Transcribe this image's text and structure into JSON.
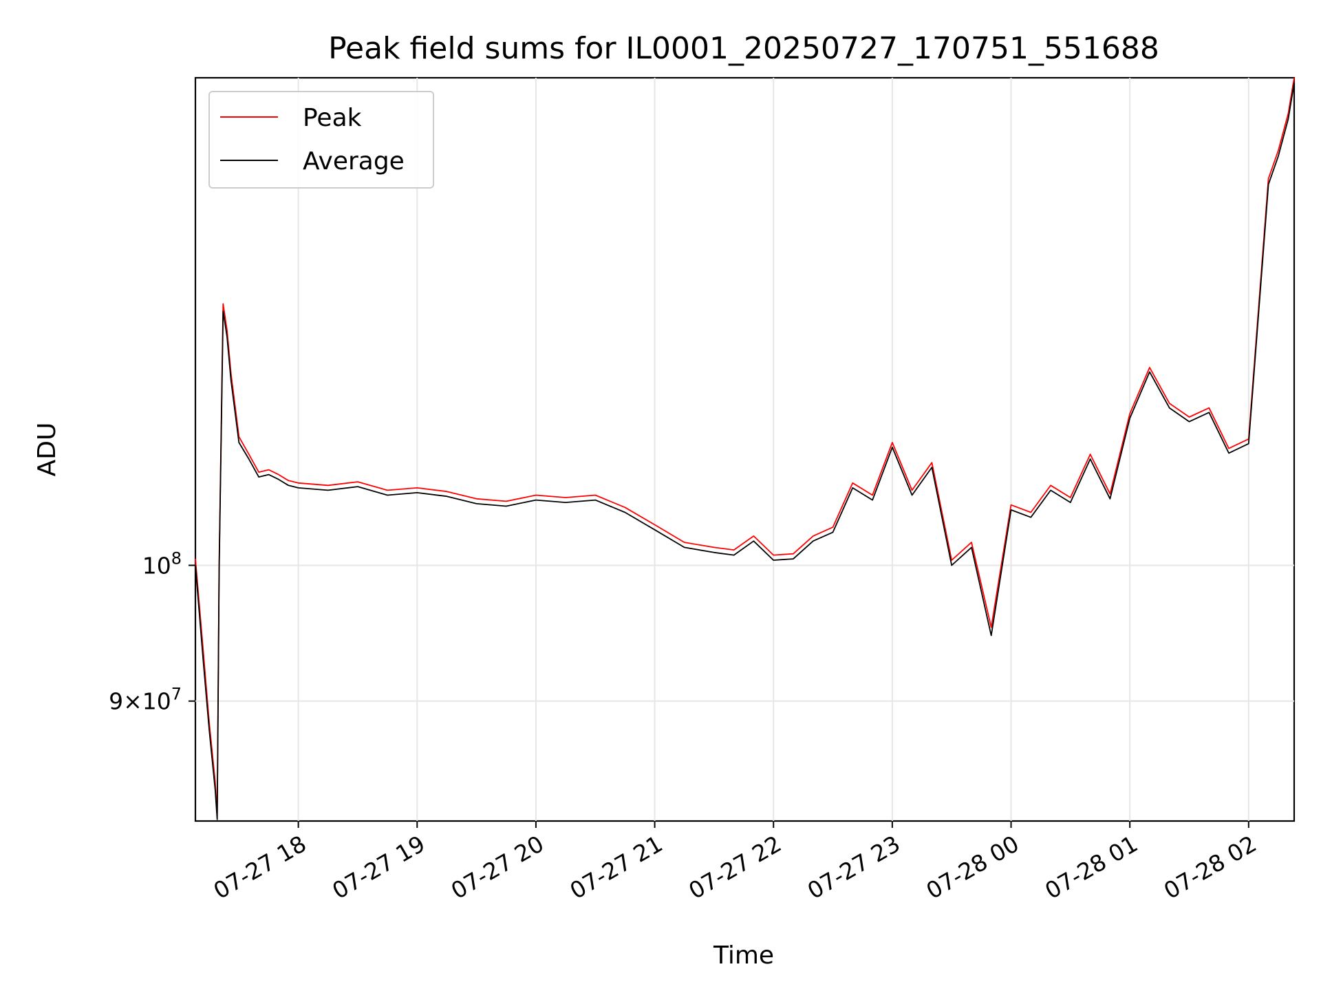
{
  "chart_data": {
    "type": "line",
    "title": "Peak field sums for IL0001_20250727_170751_551688",
    "xlabel": "Time",
    "ylabel": "ADU",
    "y_scale": "log",
    "xlim": [
      "2025-07-27 17:08",
      "2025-07-28 02:23"
    ],
    "ylim": [
      82000000,
      146000000
    ],
    "grid": true,
    "legend_position": "top-left",
    "x_tick_labels": [
      "07-27 18",
      "07-27 19",
      "07-27 20",
      "07-27 21",
      "07-27 22",
      "07-27 23",
      "07-28 00",
      "07-28 01",
      "07-28 02"
    ],
    "y_tick_labels": [
      "10^8",
      "9×10^7"
    ],
    "y_tick_values": [
      100000000,
      90000000
    ],
    "series": [
      {
        "name": "Peak",
        "color": "#ff0000",
        "x": [
          "2025-07-27 17:08",
          "2025-07-27 17:12",
          "2025-07-27 17:15",
          "2025-07-27 17:18",
          "2025-07-27 17:19",
          "2025-07-27 17:20",
          "2025-07-27 17:22",
          "2025-07-27 17:24",
          "2025-07-27 17:26",
          "2025-07-27 17:30",
          "2025-07-27 17:35",
          "2025-07-27 17:40",
          "2025-07-27 17:45",
          "2025-07-27 17:50",
          "2025-07-27 17:55",
          "2025-07-27 18:00",
          "2025-07-27 18:15",
          "2025-07-27 18:30",
          "2025-07-27 18:45",
          "2025-07-27 19:00",
          "2025-07-27 19:15",
          "2025-07-27 19:30",
          "2025-07-27 19:45",
          "2025-07-27 20:00",
          "2025-07-27 20:15",
          "2025-07-27 20:30",
          "2025-07-27 20:45",
          "2025-07-27 21:00",
          "2025-07-27 21:15",
          "2025-07-27 21:30",
          "2025-07-27 21:40",
          "2025-07-27 21:50",
          "2025-07-27 22:00",
          "2025-07-27 22:10",
          "2025-07-27 22:20",
          "2025-07-27 22:30",
          "2025-07-27 22:40",
          "2025-07-27 22:50",
          "2025-07-27 23:00",
          "2025-07-27 23:10",
          "2025-07-27 23:20",
          "2025-07-27 23:30",
          "2025-07-27 23:40",
          "2025-07-27 23:50",
          "2025-07-28 00:00",
          "2025-07-28 00:10",
          "2025-07-28 00:20",
          "2025-07-28 00:30",
          "2025-07-28 00:40",
          "2025-07-28 00:50",
          "2025-07-28 01:00",
          "2025-07-28 01:10",
          "2025-07-28 01:20",
          "2025-07-28 01:30",
          "2025-07-28 01:40",
          "2025-07-28 01:50",
          "2025-07-28 02:00",
          "2025-07-28 02:10",
          "2025-07-28 02:15",
          "2025-07-28 02:20",
          "2025-07-28 02:23"
        ],
        "y": [
          100500000,
          93500000,
          88500000,
          84500000,
          82500000,
          100000000,
          122500000,
          120000000,
          116000000,
          110500000,
          109000000,
          107500000,
          107700000,
          107300000,
          106800000,
          106600000,
          106400000,
          106700000,
          106000000,
          106200000,
          105900000,
          105300000,
          105100000,
          105600000,
          105400000,
          105600000,
          104600000,
          103200000,
          101800000,
          101400000,
          101200000,
          102300000,
          100800000,
          100900000,
          102300000,
          103000000,
          106600000,
          105600000,
          110000000,
          106000000,
          108300000,
          100400000,
          101800000,
          95300000,
          104800000,
          104200000,
          106400000,
          105400000,
          109000000,
          105700000,
          112500000,
          116600000,
          113400000,
          112200000,
          113000000,
          109500000,
          110300000,
          135000000,
          138000000,
          142000000,
          146000000
        ]
      },
      {
        "name": "Average",
        "color": "#000000",
        "x": [
          "2025-07-27 17:08",
          "2025-07-27 17:12",
          "2025-07-27 17:15",
          "2025-07-27 17:18",
          "2025-07-27 17:19",
          "2025-07-27 17:20",
          "2025-07-27 17:22",
          "2025-07-27 17:24",
          "2025-07-27 17:26",
          "2025-07-27 17:30",
          "2025-07-27 17:35",
          "2025-07-27 17:40",
          "2025-07-27 17:45",
          "2025-07-27 17:50",
          "2025-07-27 17:55",
          "2025-07-27 18:00",
          "2025-07-27 18:15",
          "2025-07-27 18:30",
          "2025-07-27 18:45",
          "2025-07-27 19:00",
          "2025-07-27 19:15",
          "2025-07-27 19:30",
          "2025-07-27 19:45",
          "2025-07-27 20:00",
          "2025-07-27 20:15",
          "2025-07-27 20:30",
          "2025-07-27 20:45",
          "2025-07-27 21:00",
          "2025-07-27 21:15",
          "2025-07-27 21:30",
          "2025-07-27 21:40",
          "2025-07-27 21:50",
          "2025-07-27 22:00",
          "2025-07-27 22:10",
          "2025-07-27 22:20",
          "2025-07-27 22:30",
          "2025-07-27 22:40",
          "2025-07-27 22:50",
          "2025-07-27 23:00",
          "2025-07-27 23:10",
          "2025-07-27 23:20",
          "2025-07-27 23:30",
          "2025-07-27 23:40",
          "2025-07-27 23:50",
          "2025-07-28 00:00",
          "2025-07-28 00:10",
          "2025-07-28 00:20",
          "2025-07-28 00:30",
          "2025-07-28 00:40",
          "2025-07-28 00:50",
          "2025-07-28 01:00",
          "2025-07-28 01:10",
          "2025-07-28 01:20",
          "2025-07-28 01:30",
          "2025-07-28 01:40",
          "2025-07-28 01:50",
          "2025-07-28 02:00",
          "2025-07-28 02:10",
          "2025-07-28 02:15",
          "2025-07-28 02:20",
          "2025-07-28 02:23"
        ],
        "y": [
          100000000,
          92800000,
          88000000,
          84000000,
          82100000,
          99600000,
          121800000,
          119400000,
          115400000,
          110000000,
          108600000,
          107100000,
          107300000,
          106900000,
          106400000,
          106200000,
          106000000,
          106300000,
          105600000,
          105800000,
          105500000,
          104900000,
          104700000,
          105200000,
          105000000,
          105200000,
          104200000,
          102800000,
          101400000,
          101000000,
          100800000,
          101900000,
          100400000,
          100500000,
          101900000,
          102600000,
          106200000,
          105200000,
          109600000,
          105600000,
          107900000,
          100000000,
          101400000,
          94700000,
          104400000,
          103800000,
          106000000,
          105000000,
          108600000,
          105300000,
          112100000,
          116200000,
          113000000,
          111800000,
          112600000,
          109100000,
          109900000,
          134400000,
          137400000,
          141400000,
          145400000
        ]
      }
    ]
  }
}
